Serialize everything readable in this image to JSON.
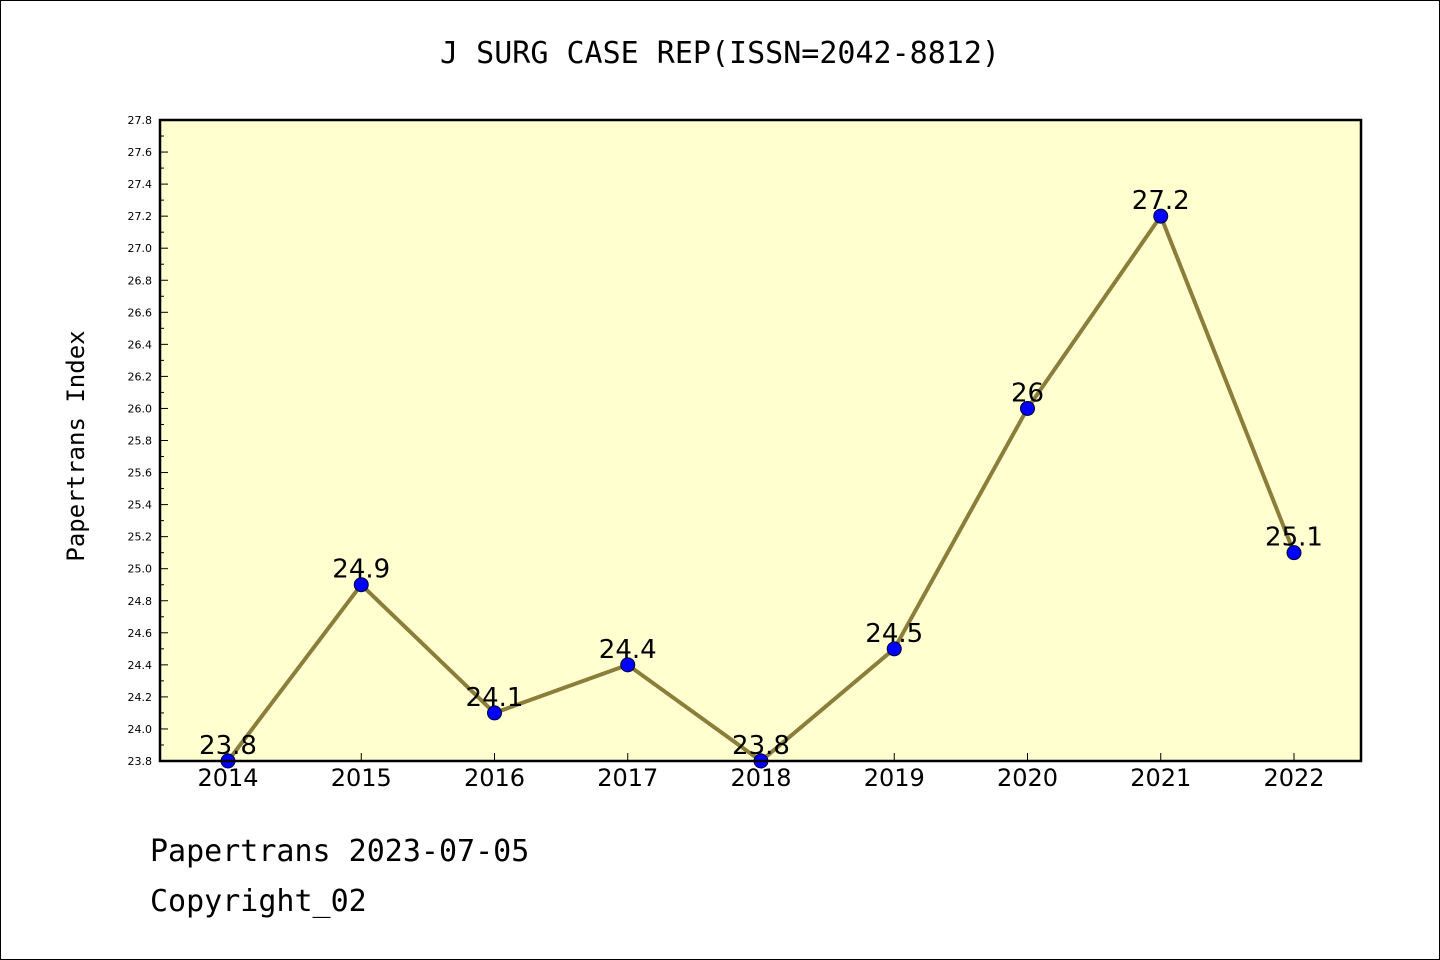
{
  "header": {
    "title": "J SURG CASE REP(ISSN=2042-8812)"
  },
  "footer": {
    "line1": "Papertrans 2023-07-05",
    "line2": "Copyright_02"
  },
  "colors": {
    "plot_background": "#ffffd0",
    "line": "#8b7d3a",
    "marker": "#0000ff",
    "axis": "#000000"
  },
  "chart_data": {
    "type": "line",
    "title": "J SURG CASE REP(ISSN=2042-8812)",
    "xlabel": "",
    "ylabel": "Papertrans Index",
    "categories": [
      "2014",
      "2015",
      "2016",
      "2017",
      "2018",
      "2019",
      "2020",
      "2021",
      "2022"
    ],
    "values": [
      23.8,
      24.9,
      24.1,
      24.4,
      23.8,
      24.5,
      26,
      27.2,
      25.1
    ],
    "data_labels": [
      "23.8",
      "24.9",
      "24.1",
      "24.4",
      "23.8",
      "24.5",
      "26",
      "27.2",
      "25.1"
    ],
    "ylim": [
      23.8,
      27.8
    ],
    "ytick_step": 0.2,
    "yticks": [
      "23.8",
      "24.0",
      "24.2",
      "24.4",
      "24.6",
      "24.8",
      "25.0",
      "25.2",
      "25.4",
      "25.6",
      "25.8",
      "26.0",
      "26.2",
      "26.4",
      "26.6",
      "26.8",
      "27.0",
      "27.2",
      "27.4",
      "27.6",
      "27.8"
    ],
    "grid": false,
    "legend": "none"
  }
}
